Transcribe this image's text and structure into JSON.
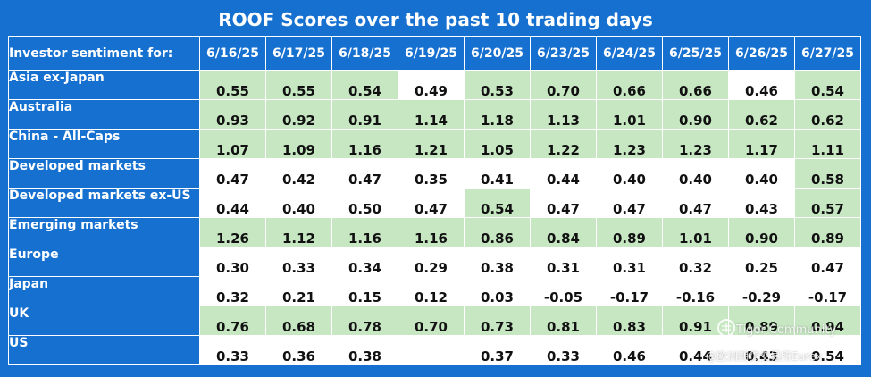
{
  "chart_data": {
    "type": "table",
    "title": "ROOF Scores over the past 10 trading days",
    "row_header": "Investor sentiment for:",
    "columns": [
      "6/16/25",
      "6/17/25",
      "6/18/25",
      "6/19/25",
      "6/20/25",
      "6/23/25",
      "6/24/25",
      "6/25/25",
      "6/26/25",
      "6/27/25"
    ],
    "rows": [
      {
        "label": "Asia ex-Japan",
        "values": [
          "0.55",
          "0.55",
          "0.54",
          "0.49",
          "0.53",
          "0.70",
          "0.66",
          "0.66",
          "0.46",
          "0.54"
        ],
        "highlight": [
          1,
          1,
          1,
          0,
          1,
          1,
          1,
          1,
          0,
          1
        ]
      },
      {
        "label": "Australia",
        "values": [
          "0.93",
          "0.92",
          "0.91",
          "1.14",
          "1.18",
          "1.13",
          "1.01",
          "0.90",
          "0.62",
          "0.62"
        ],
        "highlight": [
          1,
          1,
          1,
          1,
          1,
          1,
          1,
          1,
          1,
          1
        ]
      },
      {
        "label": "China - All-Caps",
        "values": [
          "1.07",
          "1.09",
          "1.16",
          "1.21",
          "1.05",
          "1.22",
          "1.23",
          "1.23",
          "1.17",
          "1.11"
        ],
        "highlight": [
          1,
          1,
          1,
          1,
          1,
          1,
          1,
          1,
          1,
          1
        ]
      },
      {
        "label": "Developed markets",
        "values": [
          "0.47",
          "0.42",
          "0.47",
          "0.35",
          "0.41",
          "0.44",
          "0.40",
          "0.40",
          "0.40",
          "0.58"
        ],
        "highlight": [
          0,
          0,
          0,
          0,
          0,
          0,
          0,
          0,
          0,
          1
        ]
      },
      {
        "label": "Developed markets ex-US",
        "values": [
          "0.44",
          "0.40",
          "0.50",
          "0.47",
          "0.54",
          "0.47",
          "0.47",
          "0.47",
          "0.43",
          "0.57"
        ],
        "highlight": [
          0,
          0,
          0,
          0,
          1,
          0,
          0,
          0,
          0,
          1
        ]
      },
      {
        "label": "Emerging markets",
        "values": [
          "1.26",
          "1.12",
          "1.16",
          "1.16",
          "0.86",
          "0.84",
          "0.89",
          "1.01",
          "0.90",
          "0.89"
        ],
        "highlight": [
          1,
          1,
          1,
          1,
          1,
          1,
          1,
          1,
          1,
          1
        ]
      },
      {
        "label": "Europe",
        "values": [
          "0.30",
          "0.33",
          "0.34",
          "0.29",
          "0.38",
          "0.31",
          "0.31",
          "0.32",
          "0.25",
          "0.47"
        ],
        "highlight": [
          0,
          0,
          0,
          0,
          0,
          0,
          0,
          0,
          0,
          0
        ]
      },
      {
        "label": "Japan",
        "values": [
          "0.32",
          "0.21",
          "0.15",
          "0.12",
          "0.03",
          "-0.05",
          "-0.17",
          "-0.16",
          "-0.29",
          "-0.17"
        ],
        "highlight": [
          0,
          0,
          0,
          0,
          0,
          0,
          0,
          0,
          0,
          0
        ]
      },
      {
        "label": "UK",
        "values": [
          "0.76",
          "0.68",
          "0.78",
          "0.70",
          "0.73",
          "0.81",
          "0.83",
          "0.91",
          "0.89",
          "0.94"
        ],
        "highlight": [
          1,
          1,
          1,
          1,
          1,
          1,
          1,
          1,
          1,
          1
        ]
      },
      {
        "label": "US",
        "values": [
          "0.33",
          "0.36",
          "0.38",
          "",
          "0.37",
          "0.33",
          "0.46",
          "0.44",
          "0.43",
          "0.54"
        ],
        "highlight": [
          0,
          0,
          0,
          0,
          0,
          0,
          0,
          0,
          0,
          0
        ]
      }
    ],
    "highlight_color": "#c7e7c3",
    "header_color": "#1670d0"
  },
  "watermark": {
    "line1": "Tiger Community",
    "line2": "@欧洲期货交易所Eurex"
  }
}
